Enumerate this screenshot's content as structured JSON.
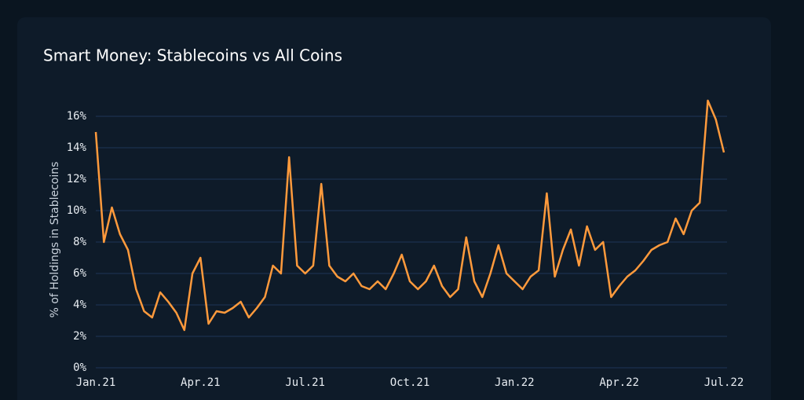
{
  "chart_data": {
    "type": "line",
    "title": "Smart Money: Stablecoins vs All Coins",
    "y_label": "% of Holdings in Stablecoins",
    "categories": [
      "Jan.21",
      null,
      null,
      null,
      null,
      null,
      null,
      null,
      null,
      null,
      null,
      null,
      null,
      "Apr.21",
      null,
      null,
      null,
      null,
      null,
      null,
      null,
      null,
      null,
      null,
      null,
      null,
      "Jul.21",
      null,
      null,
      null,
      null,
      null,
      null,
      null,
      null,
      null,
      null,
      null,
      null,
      "Oct.21",
      null,
      null,
      null,
      null,
      null,
      null,
      null,
      null,
      null,
      null,
      null,
      null,
      "Jan.22",
      null,
      null,
      null,
      null,
      null,
      null,
      null,
      null,
      null,
      null,
      null,
      null,
      "Apr.22",
      null,
      null,
      null,
      null,
      null,
      null,
      null,
      null,
      null,
      null,
      null,
      null,
      "Jul.22"
    ],
    "series": [
      {
        "color": "#ff9a3c",
        "values": [
          15.0,
          8.0,
          10.2,
          8.5,
          7.5,
          5.0,
          3.6,
          3.2,
          4.8,
          4.2,
          3.5,
          2.4,
          6.0,
          7.0,
          2.8,
          3.6,
          3.5,
          3.8,
          4.2,
          3.2,
          3.8,
          4.5,
          6.5,
          6.0,
          13.4,
          6.5,
          6.0,
          6.5,
          11.7,
          6.5,
          5.8,
          5.5,
          6.0,
          5.2,
          5.0,
          5.5,
          5.0,
          6.0,
          7.2,
          5.5,
          5.0,
          5.5,
          6.5,
          5.2,
          4.5,
          5.0,
          8.3,
          5.5,
          4.5,
          6.0,
          7.8,
          6.0,
          5.5,
          5.0,
          5.8,
          6.2,
          11.1,
          5.8,
          7.5,
          8.8,
          6.5,
          9.0,
          7.5,
          8.0,
          4.5,
          5.2,
          5.8,
          6.2,
          6.8,
          7.5,
          7.8,
          8.0,
          9.5,
          8.5,
          10.0,
          10.5,
          17.0,
          15.8,
          13.7
        ]
      }
    ],
    "ylim": [
      0,
      17.5
    ],
    "yticks": [
      {
        "value": 0,
        "label": "0%"
      },
      {
        "value": 2,
        "label": "2%"
      },
      {
        "value": 4,
        "label": "4%"
      },
      {
        "value": 6,
        "label": "6%"
      },
      {
        "value": 8,
        "label": "8%"
      },
      {
        "value": 10,
        "label": "10%"
      },
      {
        "value": 12,
        "label": "12%"
      },
      {
        "value": 14,
        "label": "14%"
      },
      {
        "value": 16,
        "label": "16%"
      }
    ],
    "grid": true
  }
}
